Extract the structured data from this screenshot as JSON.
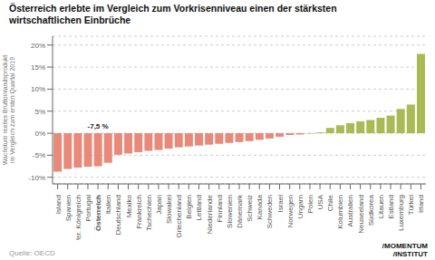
{
  "chart_data": {
    "type": "bar",
    "title": "Österreich erlebte im Vergleich zum Vorkrisenniveau einen der stärksten\nwirtschaftlichen Einbrüche",
    "y_label": "Wachstum reelles Bruttoinlandsprodukt\nim Vergleich zum ersten Quartal 2019",
    "source": "Quelle: OECD",
    "logo": [
      "/MOMENTUM",
      "/INSTITUT"
    ],
    "annotations": [
      {
        "text": "-7,5 %",
        "category": "Österreich"
      }
    ],
    "categories": [
      "Island",
      "Spanien",
      "Ver. Königreich",
      "Portugal",
      "Österreich",
      "Italien",
      "Deutschland",
      "Mexiko",
      "Frankreich",
      "Tschechien",
      "Japan",
      "Slowakei",
      "Griechenland",
      "Belgien",
      "Lettland",
      "Niederlande",
      "Finnland",
      "Slowenien",
      "Dänemark",
      "Schweiz",
      "Kanada",
      "Schweden",
      "Israel",
      "Norwegen",
      "Ungarn",
      "Polen",
      "USA",
      "Chile",
      "Kolumbien",
      "Australien",
      "Neuseeland",
      "Südkorea",
      "Litauen",
      "Estland",
      "Luxemburg",
      "Türkei",
      "Irland"
    ],
    "values": [
      -8.7,
      -8.1,
      -7.8,
      -7.6,
      -7.5,
      -6.7,
      -4.9,
      -4.6,
      -4.3,
      -4.0,
      -3.8,
      -3.5,
      -3.2,
      -3.0,
      -2.8,
      -2.6,
      -2.4,
      -2.2,
      -2.0,
      -1.8,
      -1.5,
      -1.2,
      -0.8,
      -0.4,
      -0.3,
      -0.1,
      0.2,
      1.2,
      1.8,
      2.3,
      2.7,
      3.0,
      3.5,
      4.0,
      5.5,
      6.5,
      18.0
    ],
    "colors": [
      "#E8897A",
      "#E8897A",
      "#E8897A",
      "#E8897A",
      "#E8897A",
      "#E8897A",
      "#E8897A",
      "#E8897A",
      "#E8897A",
      "#E8897A",
      "#E8897A",
      "#E8897A",
      "#E8897A",
      "#E8897A",
      "#E8897A",
      "#E8897A",
      "#E8897A",
      "#E8897A",
      "#E8897A",
      "#E8897A",
      "#E8897A",
      "#E8897A",
      "#E8897A",
      "#E8897A",
      "#E8897A",
      "#E8897A",
      "#AABB55",
      "#AABB55",
      "#AABB55",
      "#AABB55",
      "#AABB55",
      "#AABB55",
      "#AABB55",
      "#AABB55",
      "#AABB55",
      "#AABB55",
      "#AABB55"
    ],
    "ylim": [
      -11.5,
      22
    ],
    "yticks": [
      {
        "value": -10,
        "label": "-10%"
      },
      {
        "value": -5,
        "label": "-5%"
      },
      {
        "value": 0,
        "label": "0%"
      },
      {
        "value": 5,
        "label": "5%"
      },
      {
        "value": 10,
        "label": "10%"
      },
      {
        "value": 15,
        "label": "15%"
      },
      {
        "value": 20,
        "label": "20%"
      }
    ],
    "grid": true
  }
}
